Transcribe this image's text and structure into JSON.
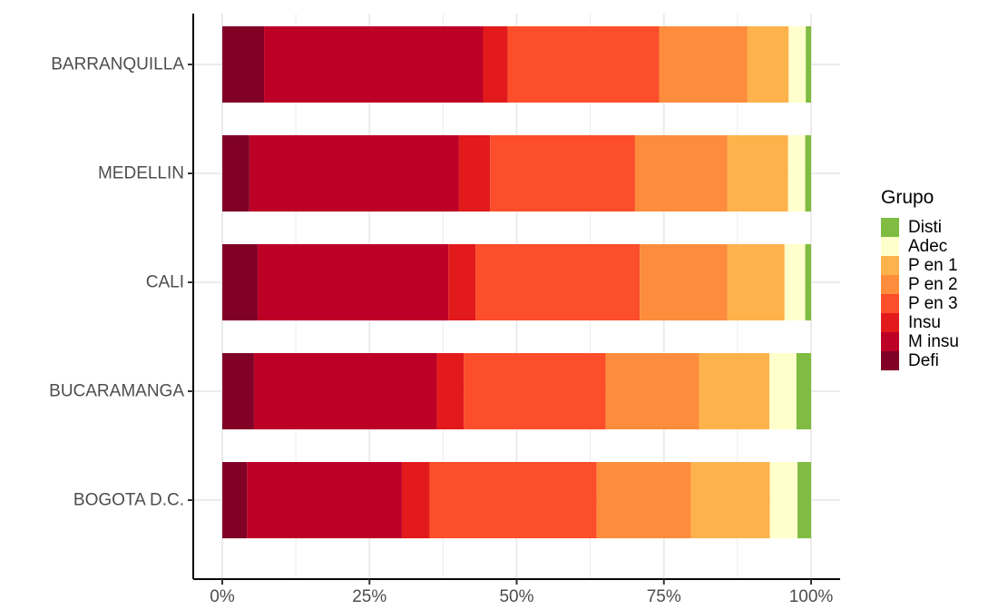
{
  "chart_data": {
    "type": "bar",
    "orientation": "horizontal",
    "stacked": "percent",
    "categories": [
      "BARRANQUILLA",
      "MEDELLIN",
      "CALI",
      "BUCARAMANGA",
      "BOGOTA D.C."
    ],
    "series": [
      {
        "name": "Defi",
        "color": "#800026",
        "values": [
          7.1,
          4.6,
          6.0,
          5.4,
          4.2
        ]
      },
      {
        "name": "M insu",
        "color": "#BD0026",
        "values": [
          37.2,
          35.6,
          32.4,
          31.2,
          26.3
        ]
      },
      {
        "name": "Insu",
        "color": "#E31A1C",
        "values": [
          4.2,
          5.3,
          4.6,
          4.6,
          4.7
        ]
      },
      {
        "name": "P en 3",
        "color": "#FC4E2A",
        "values": [
          25.7,
          24.6,
          27.9,
          24.2,
          28.4
        ]
      },
      {
        "name": "P en 2",
        "color": "#FD8D3C",
        "values": [
          15.0,
          15.7,
          14.9,
          15.9,
          16.0
        ]
      },
      {
        "name": "P en 1",
        "color": "#FEB24C",
        "values": [
          7.0,
          10.3,
          9.7,
          12.0,
          13.4
        ]
      },
      {
        "name": "Adec",
        "color": "#FFFFCC",
        "values": [
          2.9,
          2.9,
          3.5,
          4.6,
          4.7
        ]
      },
      {
        "name": "Disti",
        "color": "#7FBC41",
        "values": [
          0.9,
          1.0,
          1.0,
          2.5,
          2.3
        ]
      }
    ],
    "xlim": [
      0,
      100
    ],
    "x_ticks": [
      0,
      25,
      50,
      75,
      100
    ],
    "x_tick_labels": [
      "0%",
      "25%",
      "50%",
      "75%",
      "100%"
    ],
    "xlabel": "",
    "ylabel": "",
    "legend": {
      "title": "Grupo",
      "position": "right",
      "order": [
        "Disti",
        "Adec",
        "P en 1",
        "P en 2",
        "P en 3",
        "Insu",
        "M insu",
        "Defi"
      ]
    },
    "grid": true
  }
}
